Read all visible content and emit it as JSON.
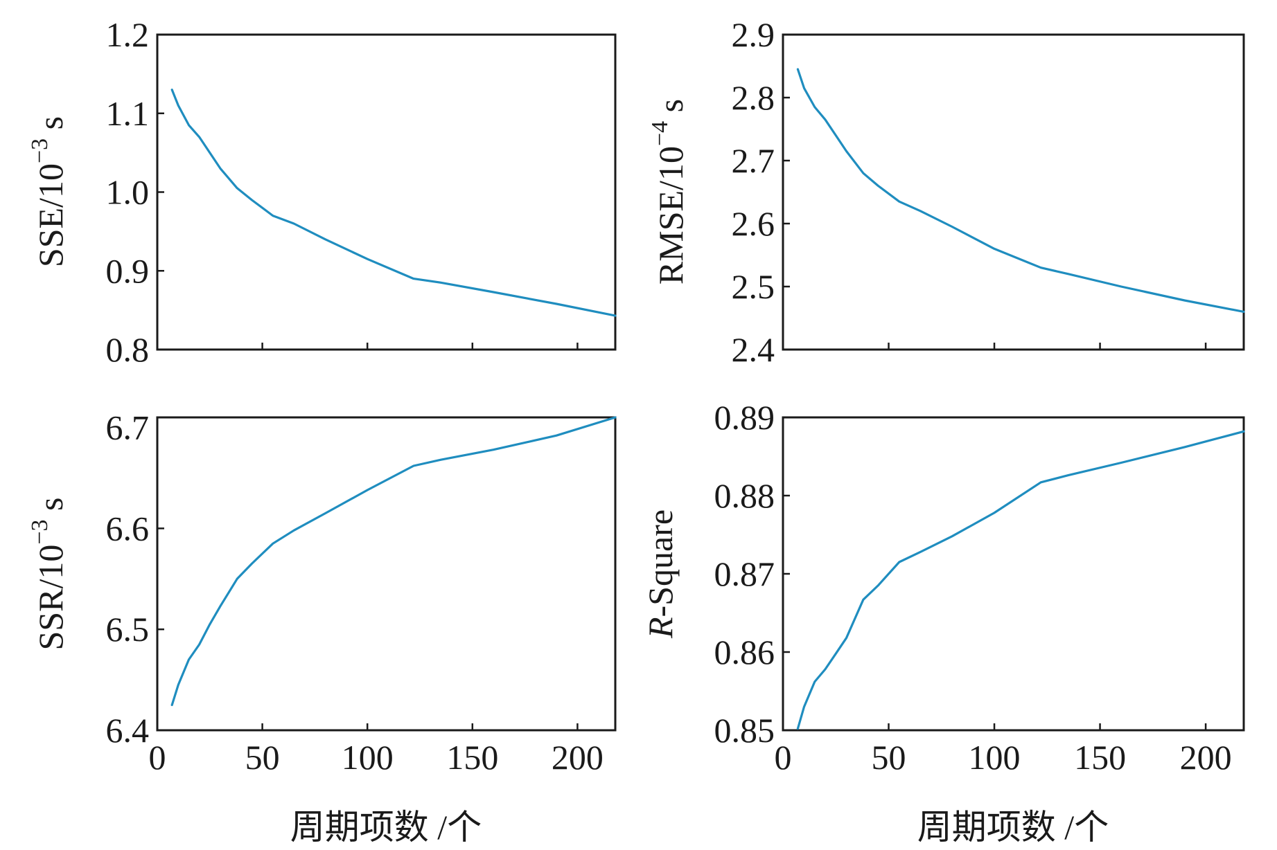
{
  "colors": {
    "line": "#1f8dbf",
    "axis": "#1a1a1a",
    "background": "#ffffff"
  },
  "chart_data": [
    {
      "type": "line",
      "id": "sse",
      "ylabel": "SSE/10",
      "ylabel_exp": "−3",
      "ylabel_unit": "s",
      "xlabel": "",
      "xlim": [
        0,
        218
      ],
      "ylim": [
        0.8,
        1.2
      ],
      "xticks": [
        0,
        50,
        100,
        150,
        200
      ],
      "xtick_labels": [
        "",
        "",
        "",
        "",
        ""
      ],
      "yticks": [
        0.8,
        0.9,
        1.0,
        1.1,
        1.2
      ],
      "ytick_labels": [
        "0.8",
        "0.9",
        "1.0",
        "1.1",
        "1.2"
      ],
      "grid": false,
      "series": [
        {
          "x": [
            7,
            10,
            15,
            20,
            25,
            30,
            38,
            45,
            55,
            65,
            80,
            100,
            122,
            135,
            160,
            190,
            218
          ],
          "y": [
            1.13,
            1.11,
            1.085,
            1.07,
            1.05,
            1.03,
            1.005,
            0.99,
            0.97,
            0.96,
            0.94,
            0.915,
            0.89,
            0.885,
            0.873,
            0.858,
            0.843
          ]
        }
      ]
    },
    {
      "type": "line",
      "id": "rmse",
      "ylabel": "RMSE/10",
      "ylabel_exp": "−4",
      "ylabel_unit": "s",
      "xlabel": "",
      "xlim": [
        0,
        218
      ],
      "ylim": [
        2.4,
        2.9
      ],
      "xticks": [
        0,
        50,
        100,
        150,
        200
      ],
      "xtick_labels": [
        "",
        "",
        "",
        "",
        ""
      ],
      "yticks": [
        2.4,
        2.5,
        2.6,
        2.7,
        2.8,
        2.9
      ],
      "ytick_labels": [
        "2.4",
        "2.5",
        "2.6",
        "2.7",
        "2.8",
        "2.9"
      ],
      "grid": false,
      "series": [
        {
          "x": [
            7,
            10,
            15,
            20,
            25,
            30,
            38,
            45,
            55,
            65,
            80,
            100,
            122,
            135,
            160,
            190,
            218
          ],
          "y": [
            2.845,
            2.815,
            2.785,
            2.765,
            2.74,
            2.715,
            2.68,
            2.66,
            2.635,
            2.62,
            2.595,
            2.56,
            2.53,
            2.52,
            2.5,
            2.478,
            2.46
          ]
        }
      ]
    },
    {
      "type": "line",
      "id": "ssr",
      "ylabel": "SSR/10",
      "ylabel_exp": "−3",
      "ylabel_unit": "s",
      "xlabel": "周期项数 /个",
      "xlim": [
        0,
        218
      ],
      "ylim": [
        6.4,
        6.71
      ],
      "xticks": [
        0,
        50,
        100,
        150,
        200
      ],
      "xtick_labels": [
        "0",
        "50",
        "100",
        "150",
        "200"
      ],
      "yticks": [
        6.4,
        6.5,
        6.6,
        6.7
      ],
      "ytick_labels": [
        "6.4",
        "6.5",
        "6.6",
        "6.7"
      ],
      "grid": false,
      "series": [
        {
          "x": [
            7,
            10,
            15,
            20,
            25,
            30,
            38,
            45,
            55,
            65,
            80,
            100,
            122,
            135,
            160,
            190,
            218
          ],
          "y": [
            6.425,
            6.445,
            6.47,
            6.485,
            6.505,
            6.523,
            6.55,
            6.565,
            6.585,
            6.598,
            6.615,
            6.638,
            6.662,
            6.668,
            6.678,
            6.692,
            6.71
          ]
        }
      ]
    },
    {
      "type": "line",
      "id": "rsquare",
      "ylabel": "R",
      "ylabel_rest": "-Square",
      "xlabel": "周期项数 /个",
      "xlim": [
        0,
        218
      ],
      "ylim": [
        0.85,
        0.89
      ],
      "xticks": [
        0,
        50,
        100,
        150,
        200
      ],
      "xtick_labels": [
        "0",
        "50",
        "100",
        "150",
        "200"
      ],
      "yticks": [
        0.85,
        0.86,
        0.87,
        0.88,
        0.89
      ],
      "ytick_labels": [
        "0.85",
        "0.86",
        "0.87",
        "0.88",
        "0.89"
      ],
      "grid": false,
      "series": [
        {
          "x": [
            7,
            10,
            15,
            20,
            25,
            30,
            38,
            45,
            55,
            65,
            80,
            100,
            122,
            135,
            160,
            190,
            218
          ],
          "y": [
            0.8502,
            0.853,
            0.8562,
            0.8578,
            0.8598,
            0.8618,
            0.8667,
            0.8685,
            0.8715,
            0.8728,
            0.8748,
            0.8778,
            0.8817,
            0.8826,
            0.8842,
            0.8862,
            0.8882
          ]
        }
      ]
    }
  ]
}
